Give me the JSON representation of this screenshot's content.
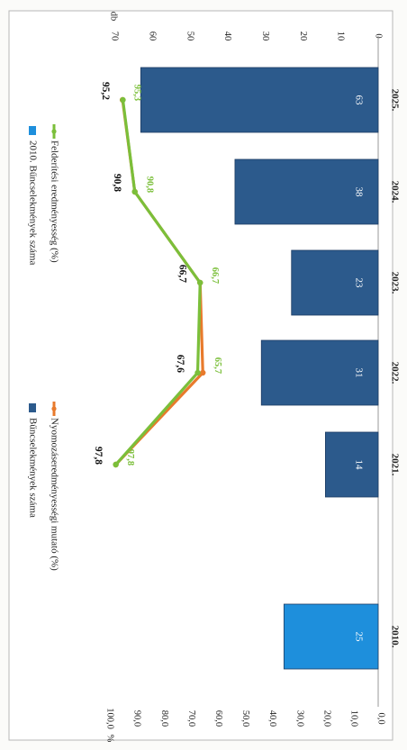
{
  "chart_data": {
    "type": "bar",
    "orientation": "rotated-90-clockwise",
    "categories": [
      "2010.",
      "2021.",
      "2022.",
      "2023.",
      "2024.",
      "2025."
    ],
    "left_axis": {
      "label": "db",
      "range": [
        0,
        70
      ],
      "ticks": [
        "0",
        "10",
        "20",
        "30",
        "40",
        "50",
        "60",
        "70"
      ]
    },
    "right_axis": {
      "label": "%",
      "range": [
        0,
        100
      ],
      "ticks": [
        "0,0",
        "10,0",
        "20,0",
        "30,0",
        "40,0",
        "50,0",
        "60,0",
        "70,0",
        "80,0",
        "90,0",
        "100,0"
      ]
    },
    "series": [
      {
        "name": "Bűncselekmények száma",
        "kind": "bar",
        "axis": "left",
        "color": "#2c5a8c",
        "values": [
          null,
          14,
          31,
          23,
          38,
          63
        ],
        "labels": [
          "",
          "14",
          "31",
          "23",
          "38",
          "63"
        ]
      },
      {
        "name": "2010. Bűncselekmények száma",
        "kind": "bar",
        "axis": "left",
        "color": "#1e8fdc",
        "values": [
          25,
          null,
          null,
          null,
          null,
          null
        ],
        "labels": [
          "25",
          "",
          "",
          "",
          "",
          ""
        ]
      },
      {
        "name": "Nyomozáseredményességi mutató (%)",
        "kind": "line",
        "axis": "right",
        "color": "#e87a2c",
        "x": [
          "2021.",
          "2022.",
          "2023.",
          "2024.",
          "2025."
        ],
        "values": [
          97.8,
          65.7,
          66.7,
          90.8,
          95.3
        ],
        "labels": [
          "97,8",
          "65,7",
          "66,7",
          "90,8",
          "95,3"
        ]
      },
      {
        "name": "Felderítési eredményesség (%)",
        "kind": "line",
        "axis": "right",
        "color": "#7bbf3a",
        "x": [
          "2021.",
          "2022.",
          "2023.",
          "2024.",
          "2025."
        ],
        "values": [
          97.8,
          67.6,
          66.7,
          90.8,
          95.2
        ],
        "labels": [
          "97,8",
          "67,6",
          "66,7",
          "90,8",
          "95,2"
        ]
      }
    ],
    "legend_position": "top",
    "grid": false
  }
}
